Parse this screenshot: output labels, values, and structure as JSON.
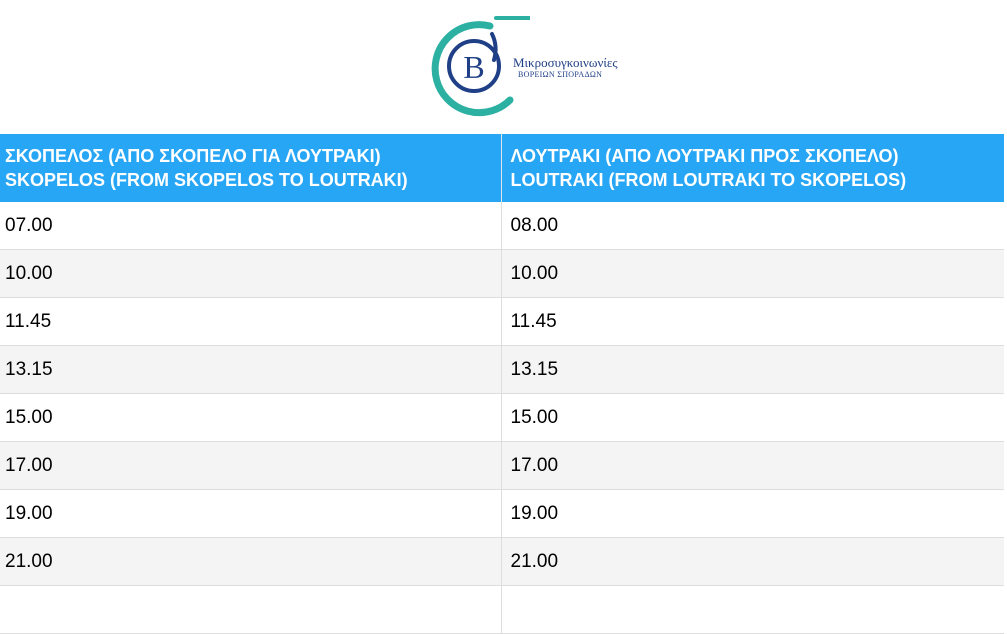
{
  "logo": {
    "title": "Μικροσυγκοινωνίες",
    "subtitle": "ΒΟΡΕΙΩΝ ΣΠΟΡΑΔΩΝ",
    "letter": "Β",
    "ring_color": "#2bb0a2",
    "brand_color": "#1f3f86"
  },
  "table": {
    "header_color": "#27a6f6",
    "columns": [
      {
        "line1": "ΣΚΟΠΕΛΟΣ (ΑΠΟ ΣΚΟΠΕΛΟ ΓΙΑ ΛΟΥΤΡΑΚΙ)",
        "line2": "SKOPELOS (FROM SKOPELOS TO LOUTRAKI)"
      },
      {
        "line1": "ΛΟΥΤΡΑΚΙ (ΑΠΟ ΛΟΥΤΡΑΚΙ ΠΡΟΣ ΣΚΟΠΕΛΟ)",
        "line2": "LOUTRAKI (FROM LOUTRAKI TO SKOPELOS)"
      }
    ],
    "rows": [
      [
        "07.00",
        "08.00"
      ],
      [
        "10.00",
        "10.00"
      ],
      [
        "11.45",
        "11.45"
      ],
      [
        "13.15",
        "13.15"
      ],
      [
        "15.00",
        "15.00"
      ],
      [
        "17.00",
        "17.00"
      ],
      [
        "19.00",
        "19.00"
      ],
      [
        "21.00",
        "21.00"
      ],
      [
        "",
        ""
      ]
    ]
  }
}
